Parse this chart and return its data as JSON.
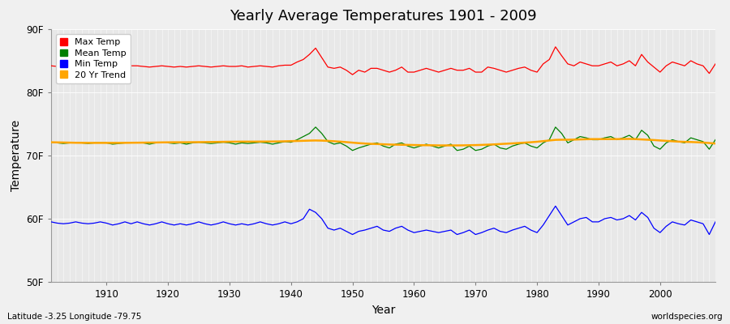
{
  "title": "Yearly Average Temperatures 1901 - 2009",
  "xlabel": "Year",
  "ylabel": "Temperature",
  "xlim": [
    1901,
    2009
  ],
  "ylim": [
    50,
    90
  ],
  "yticks": [
    50,
    60,
    70,
    80,
    90
  ],
  "ytick_labels": [
    "50F",
    "60F",
    "70F",
    "80F",
    "90F"
  ],
  "xticks": [
    1910,
    1920,
    1930,
    1940,
    1950,
    1960,
    1970,
    1980,
    1990,
    2000
  ],
  "fig_bg_color": "#f0f0f0",
  "plot_bg_color": "#e8e8e8",
  "grid_color": "#ffffff",
  "colors": {
    "max": "#ff0000",
    "mean": "#008000",
    "min": "#0000ff",
    "trend": "#ffa500"
  },
  "legend_labels": [
    "Max Temp",
    "Mean Temp",
    "Min Temp",
    "20 Yr Trend"
  ],
  "footnote_left": "Latitude -3.25 Longitude -79.75",
  "footnote_right": "worldspecies.org",
  "years": [
    1901,
    1902,
    1903,
    1904,
    1905,
    1906,
    1907,
    1908,
    1909,
    1910,
    1911,
    1912,
    1913,
    1914,
    1915,
    1916,
    1917,
    1918,
    1919,
    1920,
    1921,
    1922,
    1923,
    1924,
    1925,
    1926,
    1927,
    1928,
    1929,
    1930,
    1931,
    1932,
    1933,
    1934,
    1935,
    1936,
    1937,
    1938,
    1939,
    1940,
    1941,
    1942,
    1943,
    1944,
    1945,
    1946,
    1947,
    1948,
    1949,
    1950,
    1951,
    1952,
    1953,
    1954,
    1955,
    1956,
    1957,
    1958,
    1959,
    1960,
    1961,
    1962,
    1963,
    1964,
    1965,
    1966,
    1967,
    1968,
    1969,
    1970,
    1971,
    1972,
    1973,
    1974,
    1975,
    1976,
    1977,
    1978,
    1979,
    1980,
    1981,
    1982,
    1983,
    1984,
    1985,
    1986,
    1987,
    1988,
    1989,
    1990,
    1991,
    1992,
    1993,
    1994,
    1995,
    1996,
    1997,
    1998,
    1999,
    2000,
    2001,
    2002,
    2003,
    2004,
    2005,
    2006,
    2007,
    2008,
    2009
  ],
  "max_temp": [
    84.2,
    84.1,
    84.0,
    84.1,
    84.2,
    84.1,
    84.0,
    84.1,
    84.2,
    84.2,
    84.1,
    84.0,
    84.1,
    84.2,
    84.2,
    84.1,
    84.0,
    84.1,
    84.2,
    84.1,
    84.0,
    84.1,
    84.0,
    84.1,
    84.2,
    84.1,
    84.0,
    84.1,
    84.2,
    84.1,
    84.1,
    84.2,
    84.0,
    84.1,
    84.2,
    84.1,
    84.0,
    84.2,
    84.3,
    84.3,
    84.8,
    85.2,
    86.0,
    87.0,
    85.5,
    84.0,
    83.8,
    84.0,
    83.5,
    82.8,
    83.5,
    83.2,
    83.8,
    83.8,
    83.5,
    83.2,
    83.5,
    84.0,
    83.2,
    83.2,
    83.5,
    83.8,
    83.5,
    83.2,
    83.5,
    83.8,
    83.5,
    83.5,
    83.8,
    83.2,
    83.2,
    84.0,
    83.8,
    83.5,
    83.2,
    83.5,
    83.8,
    84.0,
    83.5,
    83.2,
    84.5,
    85.2,
    87.2,
    85.8,
    84.5,
    84.2,
    84.8,
    84.5,
    84.2,
    84.2,
    84.5,
    84.8,
    84.2,
    84.5,
    85.0,
    84.2,
    86.0,
    84.8,
    84.0,
    83.2,
    84.2,
    84.8,
    84.5,
    84.2,
    85.0,
    84.5,
    84.2,
    83.0,
    84.5
  ],
  "mean_temp": [
    72.1,
    72.0,
    71.9,
    72.0,
    72.1,
    72.0,
    71.9,
    72.0,
    72.0,
    72.0,
    71.8,
    71.9,
    72.0,
    72.0,
    72.1,
    72.0,
    71.8,
    72.0,
    72.1,
    72.0,
    71.9,
    72.0,
    71.8,
    72.0,
    72.1,
    72.0,
    71.9,
    72.0,
    72.1,
    72.0,
    71.8,
    72.0,
    71.9,
    72.0,
    72.1,
    72.0,
    71.8,
    72.0,
    72.2,
    72.1,
    72.5,
    73.0,
    73.5,
    74.5,
    73.5,
    72.2,
    71.8,
    72.0,
    71.5,
    70.8,
    71.2,
    71.5,
    71.8,
    72.0,
    71.5,
    71.2,
    71.8,
    72.0,
    71.5,
    71.2,
    71.5,
    71.8,
    71.5,
    71.2,
    71.5,
    71.8,
    70.8,
    71.0,
    71.5,
    70.8,
    71.0,
    71.5,
    71.8,
    71.2,
    71.0,
    71.5,
    71.8,
    72.0,
    71.5,
    71.2,
    72.0,
    72.5,
    74.5,
    73.5,
    72.0,
    72.5,
    73.0,
    72.8,
    72.5,
    72.5,
    72.8,
    73.0,
    72.5,
    72.8,
    73.2,
    72.5,
    74.0,
    73.2,
    71.5,
    71.0,
    72.0,
    72.5,
    72.2,
    72.0,
    72.8,
    72.5,
    72.2,
    71.0,
    72.5
  ],
  "min_temp": [
    59.5,
    59.3,
    59.2,
    59.3,
    59.5,
    59.3,
    59.2,
    59.3,
    59.5,
    59.3,
    59.0,
    59.2,
    59.5,
    59.2,
    59.5,
    59.2,
    59.0,
    59.2,
    59.5,
    59.2,
    59.0,
    59.2,
    59.0,
    59.2,
    59.5,
    59.2,
    59.0,
    59.2,
    59.5,
    59.2,
    59.0,
    59.2,
    59.0,
    59.2,
    59.5,
    59.2,
    59.0,
    59.2,
    59.5,
    59.2,
    59.5,
    60.0,
    61.5,
    61.0,
    60.0,
    58.5,
    58.2,
    58.5,
    58.0,
    57.5,
    58.0,
    58.2,
    58.5,
    58.8,
    58.2,
    58.0,
    58.5,
    58.8,
    58.2,
    57.8,
    58.0,
    58.2,
    58.0,
    57.8,
    58.0,
    58.2,
    57.5,
    57.8,
    58.2,
    57.5,
    57.8,
    58.2,
    58.5,
    58.0,
    57.8,
    58.2,
    58.5,
    58.8,
    58.2,
    57.8,
    59.0,
    60.5,
    62.0,
    60.5,
    59.0,
    59.5,
    60.0,
    60.2,
    59.5,
    59.5,
    60.0,
    60.2,
    59.8,
    60.0,
    60.5,
    59.8,
    61.0,
    60.2,
    58.5,
    57.8,
    58.8,
    59.5,
    59.2,
    59.0,
    59.8,
    59.5,
    59.2,
    57.5,
    59.5
  ],
  "trend_temp": [
    72.1,
    72.08,
    72.06,
    72.04,
    72.02,
    72.01,
    72.0,
    72.0,
    72.0,
    72.0,
    72.0,
    72.0,
    72.01,
    72.02,
    72.03,
    72.04,
    72.05,
    72.06,
    72.08,
    72.09,
    72.1,
    72.1,
    72.1,
    72.11,
    72.12,
    72.13,
    72.14,
    72.15,
    72.17,
    72.18,
    72.19,
    72.2,
    72.2,
    72.2,
    72.21,
    72.21,
    72.22,
    72.23,
    72.25,
    72.28,
    72.3,
    72.33,
    72.36,
    72.38,
    72.36,
    72.32,
    72.26,
    72.2,
    72.12,
    72.04,
    71.96,
    71.9,
    71.85,
    71.82,
    71.78,
    71.74,
    71.72,
    71.7,
    71.68,
    71.66,
    71.64,
    71.63,
    71.62,
    71.6,
    71.6,
    71.6,
    71.6,
    71.61,
    71.63,
    71.65,
    71.68,
    71.72,
    71.76,
    71.82,
    71.87,
    71.92,
    71.98,
    72.04,
    72.1,
    72.18,
    72.28,
    72.38,
    72.48,
    72.5,
    72.5,
    72.52,
    72.55,
    72.58,
    72.6,
    72.6,
    72.6,
    72.6,
    72.6,
    72.62,
    72.63,
    72.6,
    72.55,
    72.5,
    72.45,
    72.38,
    72.32,
    72.26,
    72.2,
    72.16,
    72.14,
    72.1,
    72.05,
    71.98,
    71.9
  ]
}
